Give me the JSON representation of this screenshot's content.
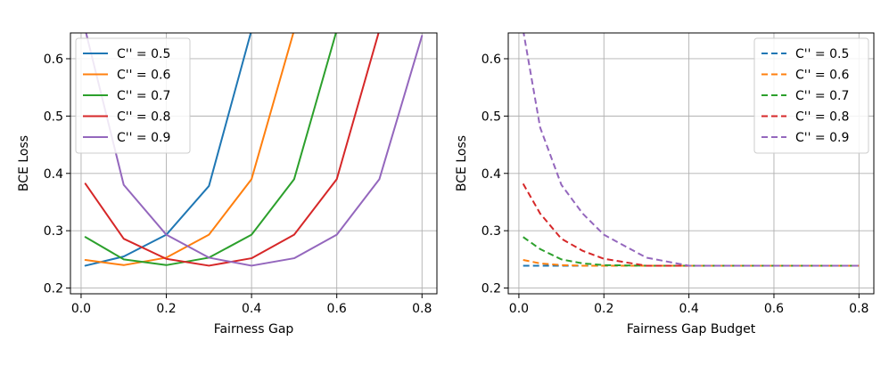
{
  "colors": [
    "#1f77b4",
    "#ff7f0e",
    "#2ca02c",
    "#d62728",
    "#9467bd"
  ],
  "chart_data": [
    {
      "type": "line",
      "name": "left",
      "xlabel": "Fairness Gap",
      "ylabel": "BCE Loss",
      "xlim": [
        -0.025,
        0.835
      ],
      "ylim": [
        0.19,
        0.645
      ],
      "xticks": [
        0.0,
        0.2,
        0.4,
        0.6,
        0.8
      ],
      "xtick_labels": [
        "0.0",
        "0.2",
        "0.4",
        "0.6",
        "0.8"
      ],
      "yticks": [
        0.2,
        0.3,
        0.4,
        0.5,
        0.6
      ],
      "ytick_labels": [
        "0.2",
        "0.3",
        "0.4",
        "0.5",
        "0.6"
      ],
      "grid": true,
      "legend_position": "top-left",
      "line_style": "solid",
      "x": [
        0.01,
        0.1,
        0.2,
        0.3,
        0.4,
        0.5,
        0.6,
        0.7,
        0.8
      ],
      "series": [
        {
          "name": "C'' = 0.5",
          "values": [
            0.239,
            0.255,
            0.293,
            0.378,
            0.65,
            null,
            null,
            null,
            null
          ]
        },
        {
          "name": "C'' = 0.6",
          "values": [
            0.249,
            0.24,
            0.253,
            0.293,
            0.39,
            0.65,
            null,
            null,
            null
          ]
        },
        {
          "name": "C'' = 0.7",
          "values": [
            0.289,
            0.25,
            0.24,
            0.253,
            0.293,
            0.39,
            0.65,
            null,
            null
          ]
        },
        {
          "name": "C'' = 0.8",
          "values": [
            0.382,
            0.286,
            0.251,
            0.239,
            0.252,
            0.293,
            0.39,
            0.65,
            null
          ]
        },
        {
          "name": "C'' = 0.9",
          "values": [
            0.65,
            0.38,
            0.293,
            0.253,
            0.239,
            0.252,
            0.293,
            0.39,
            0.64
          ]
        }
      ]
    },
    {
      "type": "line",
      "name": "right",
      "xlabel": "Fairness Gap Budget",
      "ylabel": "BCE Loss",
      "xlim": [
        -0.025,
        0.835
      ],
      "ylim": [
        0.19,
        0.645
      ],
      "xticks": [
        0.0,
        0.2,
        0.4,
        0.6,
        0.8
      ],
      "xtick_labels": [
        "0.0",
        "0.2",
        "0.4",
        "0.6",
        "0.8"
      ],
      "yticks": [
        0.2,
        0.3,
        0.4,
        0.5,
        0.6
      ],
      "ytick_labels": [
        "0.2",
        "0.3",
        "0.4",
        "0.5",
        "0.6"
      ],
      "grid": true,
      "legend_position": "top-right",
      "line_style": "dashed",
      "x": [
        0.01,
        0.05,
        0.1,
        0.15,
        0.2,
        0.3,
        0.4,
        0.5,
        0.6,
        0.7,
        0.8
      ],
      "series": [
        {
          "name": "C'' = 0.5",
          "values": [
            0.239,
            0.239,
            0.239,
            0.239,
            0.239,
            0.239,
            0.239,
            0.239,
            0.239,
            0.239,
            0.239
          ]
        },
        {
          "name": "C'' = 0.6",
          "values": [
            0.249,
            0.243,
            0.24,
            0.239,
            0.239,
            0.239,
            0.239,
            0.239,
            0.239,
            0.239,
            0.239
          ]
        },
        {
          "name": "C'' = 0.7",
          "values": [
            0.289,
            0.268,
            0.25,
            0.243,
            0.24,
            0.239,
            0.239,
            0.239,
            0.239,
            0.239,
            0.239
          ]
        },
        {
          "name": "C'' = 0.8",
          "values": [
            0.382,
            0.33,
            0.286,
            0.265,
            0.251,
            0.239,
            0.239,
            0.239,
            0.239,
            0.239,
            0.239
          ]
        },
        {
          "name": "C'' = 0.9",
          "values": [
            0.65,
            0.48,
            0.38,
            0.33,
            0.293,
            0.253,
            0.239,
            0.239,
            0.239,
            0.239,
            0.239
          ]
        }
      ]
    }
  ]
}
